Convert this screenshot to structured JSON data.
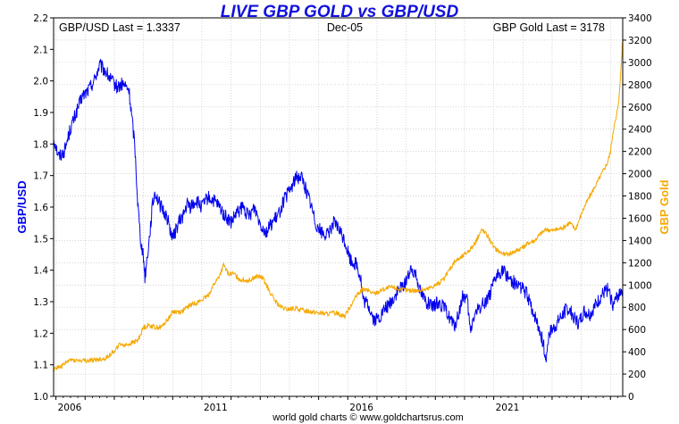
{
  "chart_data": {
    "type": "line",
    "title": "LIVE GBP GOLD vs GBP/USD",
    "left_info": "GBP/USD Last = 1.3337",
    "center_info": "Dec-05",
    "right_info": "GBP Gold Last = 3178",
    "footer": "world gold charts © www.goldchartsrus.com",
    "colors": {
      "title": "#1111dd",
      "gbpusd": "#0000ee",
      "gold": "#f5a800",
      "grid": "#bbbbbb"
    },
    "x_range": [
      2005.92,
      2025.42
    ],
    "x_tick_labels": [
      "2006",
      "2011",
      "2016",
      "2021"
    ],
    "y_left": {
      "label": "GBP/USD",
      "range": [
        1.0,
        2.2
      ],
      "ticks": [
        "1.0",
        "1.1",
        "1.2",
        "1.3",
        "1.4",
        "1.5",
        "1.6",
        "1.7",
        "1.8",
        "1.9",
        "2.0",
        "2.1",
        "2.2"
      ]
    },
    "y_right": {
      "label": "GBP Gold",
      "range": [
        0,
        3400
      ],
      "ticks": [
        "0",
        "200",
        "400",
        "600",
        "800",
        "1000",
        "1200",
        "1400",
        "1600",
        "1800",
        "2000",
        "2200",
        "2400",
        "2600",
        "2800",
        "3000",
        "3200",
        "3400"
      ]
    },
    "series": [
      {
        "name": "GBP/USD",
        "axis": "left",
        "x": [
          2005.92,
          2006.1,
          2006.3,
          2006.5,
          2006.7,
          2006.9,
          2007.1,
          2007.3,
          2007.5,
          2007.7,
          2007.9,
          2008.1,
          2008.3,
          2008.5,
          2008.7,
          2008.8,
          2008.9,
          2009.0,
          2009.05,
          2009.1,
          2009.2,
          2009.3,
          2009.4,
          2009.5,
          2009.6,
          2009.8,
          2010.0,
          2010.2,
          2010.4,
          2010.5,
          2010.6,
          2010.8,
          2011.0,
          2011.2,
          2011.4,
          2011.6,
          2011.8,
          2012.0,
          2012.2,
          2012.4,
          2012.6,
          2012.8,
          2013.0,
          2013.2,
          2013.4,
          2013.6,
          2013.8,
          2014.0,
          2014.2,
          2014.4,
          2014.55,
          2014.7,
          2014.9,
          2015.1,
          2015.3,
          2015.5,
          2015.7,
          2015.9,
          2016.1,
          2016.3,
          2016.45,
          2016.5,
          2016.55,
          2016.7,
          2016.9,
          2017.1,
          2017.3,
          2017.5,
          2017.7,
          2017.9,
          2018.1,
          2018.3,
          2018.5,
          2018.7,
          2018.9,
          2019.1,
          2019.3,
          2019.5,
          2019.65,
          2019.8,
          2019.95,
          2020.1,
          2020.2,
          2020.3,
          2020.5,
          2020.7,
          2020.9,
          2021.1,
          2021.3,
          2021.5,
          2021.7,
          2021.9,
          2022.1,
          2022.3,
          2022.5,
          2022.7,
          2022.75,
          2022.8,
          2022.9,
          2023.1,
          2023.3,
          2023.5,
          2023.7,
          2023.9,
          2024.1,
          2024.3,
          2024.5,
          2024.7,
          2024.9,
          2025.1,
          2025.3,
          2025.42
        ],
        "values": [
          1.82,
          1.76,
          1.78,
          1.85,
          1.9,
          1.95,
          1.97,
          2.0,
          2.05,
          2.03,
          2.0,
          1.98,
          1.99,
          1.97,
          1.8,
          1.62,
          1.5,
          1.44,
          1.38,
          1.42,
          1.5,
          1.6,
          1.65,
          1.62,
          1.6,
          1.57,
          1.5,
          1.55,
          1.58,
          1.61,
          1.6,
          1.62,
          1.6,
          1.63,
          1.62,
          1.6,
          1.57,
          1.55,
          1.58,
          1.6,
          1.57,
          1.6,
          1.55,
          1.52,
          1.55,
          1.57,
          1.62,
          1.65,
          1.69,
          1.7,
          1.66,
          1.62,
          1.55,
          1.52,
          1.51,
          1.55,
          1.53,
          1.49,
          1.43,
          1.42,
          1.37,
          1.32,
          1.3,
          1.29,
          1.24,
          1.25,
          1.28,
          1.3,
          1.33,
          1.35,
          1.39,
          1.4,
          1.33,
          1.3,
          1.28,
          1.3,
          1.28,
          1.25,
          1.22,
          1.26,
          1.32,
          1.3,
          1.2,
          1.25,
          1.28,
          1.3,
          1.33,
          1.38,
          1.4,
          1.38,
          1.36,
          1.35,
          1.33,
          1.28,
          1.23,
          1.17,
          1.12,
          1.13,
          1.2,
          1.22,
          1.25,
          1.28,
          1.26,
          1.23,
          1.27,
          1.26,
          1.29,
          1.32,
          1.34,
          1.29,
          1.33,
          1.34
        ]
      },
      {
        "name": "GBP Gold",
        "axis": "right",
        "x": [
          2005.92,
          2006.2,
          2006.5,
          2006.8,
          2007.1,
          2007.4,
          2007.7,
          2008.0,
          2008.2,
          2008.4,
          2008.6,
          2008.8,
          2009.0,
          2009.2,
          2009.4,
          2009.6,
          2009.8,
          2010.0,
          2010.3,
          2010.6,
          2010.9,
          2011.2,
          2011.4,
          2011.6,
          2011.75,
          2011.9,
          2012.1,
          2012.3,
          2012.6,
          2012.9,
          2013.1,
          2013.3,
          2013.5,
          2013.7,
          2013.9,
          2014.2,
          2014.5,
          2014.8,
          2015.0,
          2015.3,
          2015.6,
          2015.9,
          2016.1,
          2016.3,
          2016.5,
          2016.7,
          2016.9,
          2017.2,
          2017.5,
          2017.8,
          2018.1,
          2018.4,
          2018.7,
          2019.0,
          2019.3,
          2019.5,
          2019.7,
          2019.9,
          2020.1,
          2020.3,
          2020.5,
          2020.6,
          2020.8,
          2021.0,
          2021.2,
          2021.4,
          2021.7,
          2022.0,
          2022.2,
          2022.4,
          2022.6,
          2022.8,
          2023.0,
          2023.2,
          2023.4,
          2023.6,
          2023.8,
          2023.95,
          2024.1,
          2024.3,
          2024.5,
          2024.7,
          2024.9,
          2025.0,
          2025.1,
          2025.2,
          2025.3,
          2025.42
        ],
        "values": [
          250,
          270,
          330,
          320,
          320,
          330,
          340,
          410,
          470,
          460,
          480,
          500,
          620,
          640,
          620,
          620,
          680,
          760,
          760,
          820,
          850,
          900,
          1000,
          1080,
          1180,
          1100,
          1100,
          1050,
          1040,
          1080,
          1060,
          950,
          860,
          800,
          780,
          790,
          770,
          760,
          750,
          740,
          750,
          720,
          820,
          900,
          960,
          950,
          920,
          960,
          980,
          960,
          950,
          950,
          960,
          1000,
          1050,
          1150,
          1220,
          1250,
          1300,
          1350,
          1450,
          1500,
          1440,
          1340,
          1300,
          1270,
          1300,
          1340,
          1380,
          1400,
          1460,
          1500,
          1490,
          1500,
          1520,
          1560,
          1500,
          1600,
          1700,
          1800,
          1900,
          2000,
          2100,
          2200,
          2400,
          2500,
          2700,
          3200
        ]
      }
    ]
  }
}
